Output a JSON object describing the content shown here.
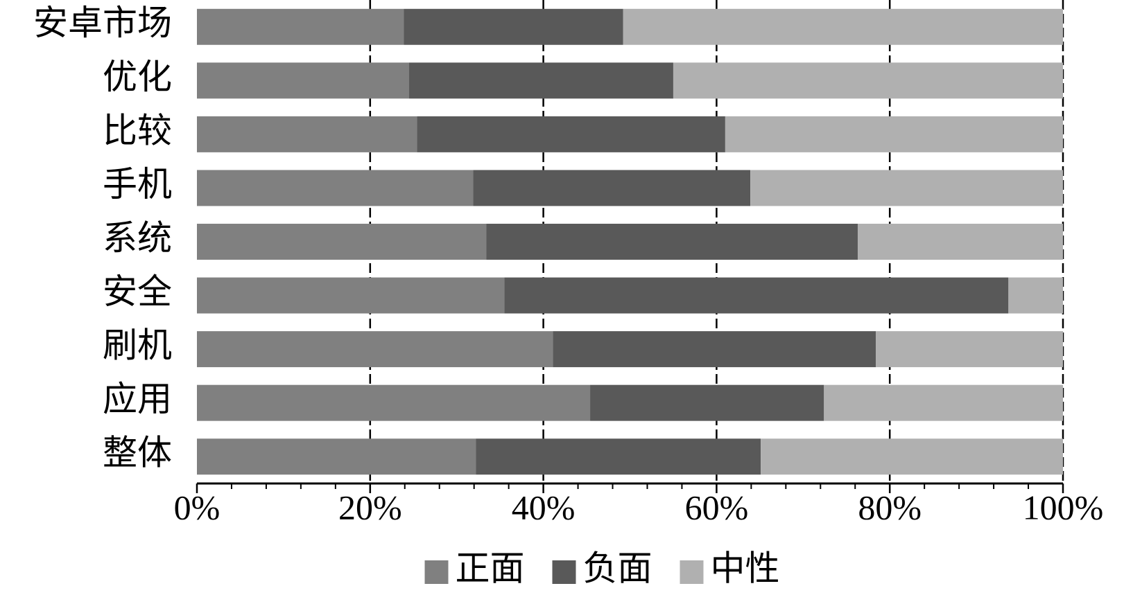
{
  "chart_data": {
    "type": "stacked_bar_horizontal",
    "categories": [
      "安卓市场",
      "优化",
      "比较",
      "手机",
      "系统",
      "安全",
      "刷机",
      "应用",
      "整体"
    ],
    "series": [
      {
        "name": "正面",
        "color": "#808080",
        "values": [
          23.9,
          24.5,
          25.4,
          31.9,
          33.4,
          35.5,
          41.1,
          45.4,
          32.2
        ]
      },
      {
        "name": "负面",
        "color": "#595959",
        "values": [
          25.3,
          30.5,
          35.6,
          32.0,
          42.9,
          58.2,
          37.3,
          27.0,
          32.9
        ]
      },
      {
        "name": "中性",
        "color": "#b0b0b0",
        "values": [
          50.8,
          45.0,
          39.0,
          36.1,
          23.7,
          6.3,
          21.6,
          27.6,
          34.9
        ]
      }
    ],
    "xlim": [
      0,
      100
    ],
    "xticks": [
      {
        "value": 0,
        "label": "0%"
      },
      {
        "value": 20,
        "label": "20%"
      },
      {
        "value": 40,
        "label": "40%"
      },
      {
        "value": 60,
        "label": "60%"
      },
      {
        "value": 80,
        "label": "80%"
      },
      {
        "value": 100,
        "label": "100%"
      }
    ],
    "minor_xticks": [
      4,
      8,
      12,
      16,
      24,
      28,
      32,
      36,
      44,
      48,
      52,
      56,
      64,
      68,
      72,
      76,
      84,
      88,
      92,
      96
    ],
    "grid": true,
    "legend": "bottom"
  }
}
